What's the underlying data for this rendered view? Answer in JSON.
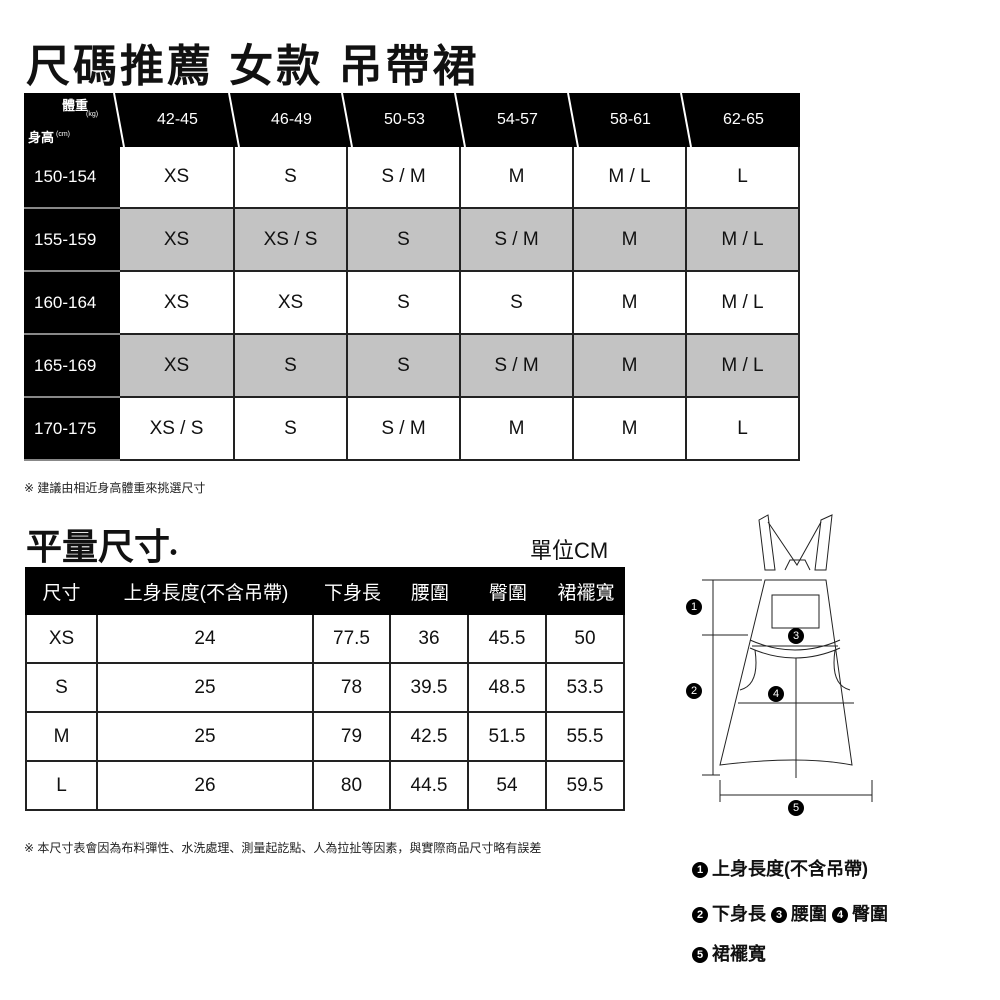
{
  "title": "尺碼推薦 女款 吊帶裙",
  "chart1": {
    "corner": {
      "weight": "體重",
      "weight_unit": "(kg)",
      "height": "身高",
      "height_unit": "(cm)"
    },
    "weights": [
      "42-45",
      "46-49",
      "50-53",
      "54-57",
      "58-61",
      "62-65"
    ],
    "rows": [
      {
        "height": "150-154",
        "sizes": [
          "XS",
          "S",
          "S / M",
          "M",
          "M / L",
          "L"
        ]
      },
      {
        "height": "155-159",
        "sizes": [
          "XS",
          "XS / S",
          "S",
          "S / M",
          "M",
          "M / L"
        ]
      },
      {
        "height": "160-164",
        "sizes": [
          "XS",
          "XS",
          "S",
          "S",
          "M",
          "M / L"
        ]
      },
      {
        "height": "165-169",
        "sizes": [
          "XS",
          "S",
          "S",
          "S / M",
          "M",
          "M / L"
        ]
      },
      {
        "height": "170-175",
        "sizes": [
          "XS / S",
          "S",
          "S / M",
          "M",
          "M",
          "L"
        ]
      }
    ],
    "note": "※ 建議由相近身高體重來挑選尺寸",
    "shade_color": "#c3c3c3"
  },
  "section2": {
    "title": "平量尺寸",
    "unit": "單位CM"
  },
  "chart2": {
    "headers": [
      "尺寸",
      "上身長度(不含吊帶)",
      "下身長",
      "腰圍",
      "臀圍",
      "裙襬寬"
    ],
    "rows": [
      [
        "XS",
        "24",
        "77.5",
        "36",
        "45.5",
        "50"
      ],
      [
        "S",
        "25",
        "78",
        "39.5",
        "48.5",
        "53.5"
      ],
      [
        "M",
        "25",
        "79",
        "42.5",
        "51.5",
        "55.5"
      ],
      [
        "L",
        "26",
        "80",
        "44.5",
        "54",
        "59.5"
      ]
    ],
    "note": "※ 本尺寸表會因為布料彈性、水洗處理、測量起訖點、人為拉扯等因素，與實際商品尺寸略有誤差"
  },
  "diagram": {
    "markers": [
      "1",
      "2",
      "3",
      "4",
      "5"
    ]
  },
  "legend": {
    "l1": "上身長度(不含吊帶)",
    "l2": "下身長",
    "l3": "腰圍",
    "l4": "臀圍",
    "l5": "裙襬寬"
  }
}
